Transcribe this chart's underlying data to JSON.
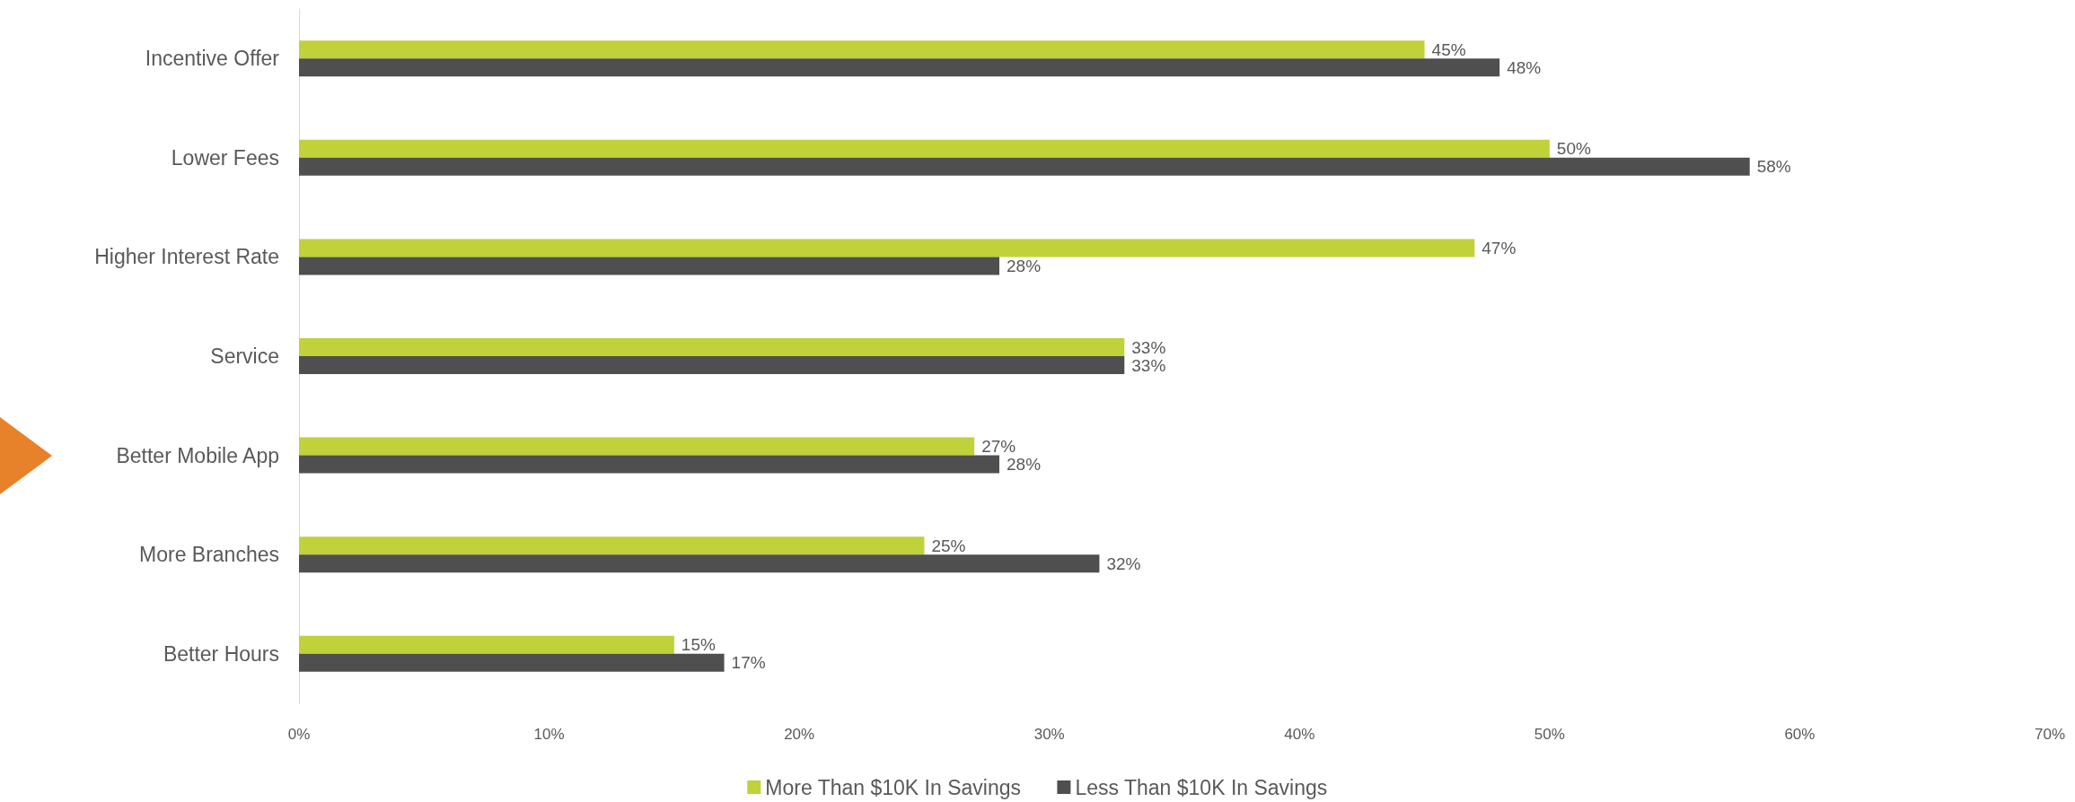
{
  "chart_data": {
    "type": "bar",
    "orientation": "horizontal",
    "categories": [
      "Incentive Offer",
      "Lower Fees",
      "Higher Interest Rate",
      "Service",
      "Better Mobile App",
      "More Branches",
      "Better Hours"
    ],
    "series": [
      {
        "name": "More Than $10K In Savings",
        "color": "#c0d13a",
        "values": [
          45,
          50,
          47,
          33,
          27,
          25,
          15
        ],
        "value_labels": [
          "45%",
          "50%",
          "47%",
          "33%",
          "27%",
          "25%",
          "15%"
        ]
      },
      {
        "name": "Less Than $10K In Savings",
        "color": "#4f4f4f",
        "values": [
          48,
          58,
          28,
          33,
          28,
          32,
          17
        ],
        "value_labels": [
          "48%",
          "58%",
          "28%",
          "33%",
          "28%",
          "32%",
          "17%"
        ]
      }
    ],
    "xlim": [
      0,
      70
    ],
    "xticks": [
      {
        "value": 0,
        "label": "0%"
      },
      {
        "value": 10,
        "label": "10%"
      },
      {
        "value": 20,
        "label": "20%"
      },
      {
        "value": 30,
        "label": "30%"
      },
      {
        "value": 40,
        "label": "40%"
      },
      {
        "value": 50,
        "label": "50%"
      },
      {
        "value": 60,
        "label": "60%"
      },
      {
        "value": 70,
        "label": "70%"
      }
    ],
    "grid": false,
    "legend": "bottom"
  }
}
